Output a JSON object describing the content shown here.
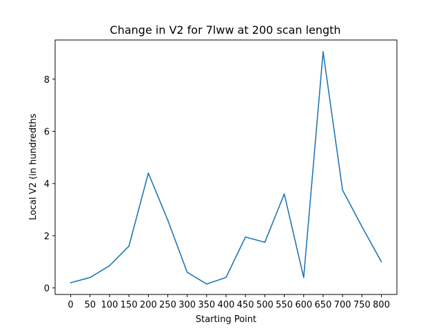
{
  "chart_data": {
    "type": "line",
    "title": "Change in V2 for 7lww at 200 scan length",
    "xlabel": "Starting Point",
    "ylabel": "Local V2 (in hundredths",
    "x": [
      0,
      50,
      100,
      150,
      200,
      250,
      300,
      350,
      400,
      450,
      500,
      550,
      600,
      650,
      700,
      750,
      800
    ],
    "series": [
      {
        "values": [
          0.2,
          0.4,
          0.85,
          1.6,
          4.4,
          2.6,
          0.6,
          0.15,
          0.4,
          1.95,
          1.75,
          3.6,
          0.4,
          9.05,
          3.75,
          2.35,
          1.0
        ],
        "color": "#1f77b4"
      }
    ],
    "xticks": [
      "0",
      "50",
      "100",
      "150",
      "200",
      "250",
      "300",
      "350",
      "400",
      "450",
      "500",
      "550",
      "600",
      "650",
      "700",
      "750",
      "800"
    ],
    "yticks": [
      0,
      2,
      4,
      6,
      8
    ],
    "xlim": [
      -40,
      840
    ],
    "ylim": [
      -0.25,
      9.5
    ],
    "grid": false
  }
}
